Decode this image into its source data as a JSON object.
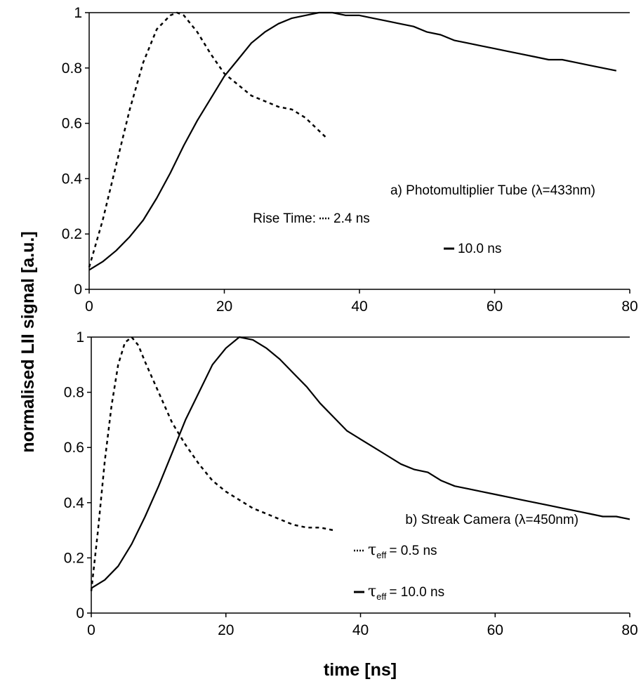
{
  "chart_data": [
    {
      "type": "line",
      "panel": "a",
      "xlim": [
        0,
        80
      ],
      "ylim": [
        0,
        1
      ],
      "x_ticks": [
        0,
        20,
        40,
        60,
        80
      ],
      "y_ticks": [
        0,
        0.2,
        0.4,
        0.6,
        0.8,
        1
      ],
      "x_tick_labels": [
        "0",
        "20",
        "40",
        "60",
        "80"
      ],
      "y_tick_labels": [
        "0",
        "0.2",
        "0.4",
        "0.6",
        "0.8",
        "1"
      ],
      "grid": false,
      "legend": {
        "position": "right",
        "title": "a) Photomultiplier Tube (λ=433nm)",
        "prefix": "Rise Time:",
        "entries": [
          {
            "label": "2.4 ns",
            "style": "dotted"
          },
          {
            "label": "10.0 ns",
            "style": "solid"
          }
        ]
      },
      "series": [
        {
          "name": "2.4 ns",
          "style": "dotted",
          "points": [
            [
              0,
              0.08
            ],
            [
              2,
              0.25
            ],
            [
              4,
              0.45
            ],
            [
              6,
              0.65
            ],
            [
              8,
              0.82
            ],
            [
              10,
              0.94
            ],
            [
              12,
              0.99
            ],
            [
              13,
              1.0
            ],
            [
              14,
              0.99
            ],
            [
              16,
              0.93
            ],
            [
              18,
              0.85
            ],
            [
              20,
              0.78
            ],
            [
              22,
              0.74
            ],
            [
              24,
              0.7
            ],
            [
              26,
              0.68
            ],
            [
              28,
              0.66
            ],
            [
              30,
              0.65
            ],
            [
              32,
              0.62
            ],
            [
              35,
              0.55
            ]
          ]
        },
        {
          "name": "10.0 ns",
          "style": "solid",
          "points": [
            [
              0,
              0.07
            ],
            [
              2,
              0.1
            ],
            [
              4,
              0.14
            ],
            [
              6,
              0.19
            ],
            [
              8,
              0.25
            ],
            [
              10,
              0.33
            ],
            [
              12,
              0.42
            ],
            [
              14,
              0.52
            ],
            [
              16,
              0.61
            ],
            [
              18,
              0.69
            ],
            [
              20,
              0.77
            ],
            [
              22,
              0.83
            ],
            [
              24,
              0.89
            ],
            [
              26,
              0.93
            ],
            [
              28,
              0.96
            ],
            [
              30,
              0.98
            ],
            [
              32,
              0.99
            ],
            [
              34,
              1.0
            ],
            [
              36,
              1.0
            ],
            [
              38,
              0.99
            ],
            [
              40,
              0.99
            ],
            [
              42,
              0.98
            ],
            [
              44,
              0.97
            ],
            [
              46,
              0.96
            ],
            [
              48,
              0.95
            ],
            [
              50,
              0.93
            ],
            [
              52,
              0.92
            ],
            [
              54,
              0.9
            ],
            [
              56,
              0.89
            ],
            [
              58,
              0.88
            ],
            [
              60,
              0.87
            ],
            [
              62,
              0.86
            ],
            [
              64,
              0.85
            ],
            [
              66,
              0.84
            ],
            [
              68,
              0.83
            ],
            [
              70,
              0.83
            ],
            [
              72,
              0.82
            ],
            [
              74,
              0.81
            ],
            [
              76,
              0.8
            ],
            [
              78,
              0.79
            ]
          ]
        }
      ]
    },
    {
      "type": "line",
      "panel": "b",
      "xlim": [
        0,
        80
      ],
      "ylim": [
        0,
        1
      ],
      "x_ticks": [
        0,
        20,
        40,
        60,
        80
      ],
      "y_ticks": [
        0,
        0.2,
        0.4,
        0.6,
        0.8,
        1
      ],
      "x_tick_labels": [
        "0",
        "20",
        "40",
        "60",
        "80"
      ],
      "y_tick_labels": [
        "0",
        "0.2",
        "0.4",
        "0.6",
        "0.8",
        "1"
      ],
      "grid": false,
      "legend": {
        "position": "right",
        "title": "b) Streak Camera (λ=450nm)",
        "entries": [
          {
            "symbol": "τ",
            "subscript": "eff",
            "label": "=   0.5 ns",
            "style": "dotted"
          },
          {
            "symbol": "τ",
            "subscript": "eff",
            "label": "= 10.0 ns",
            "style": "solid"
          }
        ]
      },
      "series": [
        {
          "name": "0.5 ns",
          "style": "dotted",
          "points": [
            [
              0,
              0.08
            ],
            [
              1,
              0.3
            ],
            [
              2,
              0.55
            ],
            [
              3,
              0.75
            ],
            [
              4,
              0.9
            ],
            [
              5,
              0.98
            ],
            [
              6,
              1.0
            ],
            [
              7,
              0.97
            ],
            [
              8,
              0.91
            ],
            [
              10,
              0.8
            ],
            [
              12,
              0.69
            ],
            [
              14,
              0.61
            ],
            [
              16,
              0.54
            ],
            [
              18,
              0.48
            ],
            [
              20,
              0.44
            ],
            [
              22,
              0.41
            ],
            [
              24,
              0.38
            ],
            [
              26,
              0.36
            ],
            [
              28,
              0.34
            ],
            [
              30,
              0.32
            ],
            [
              32,
              0.31
            ],
            [
              34,
              0.31
            ],
            [
              36,
              0.3
            ]
          ]
        },
        {
          "name": "10.0 ns",
          "style": "solid",
          "points": [
            [
              0,
              0.09
            ],
            [
              2,
              0.12
            ],
            [
              4,
              0.17
            ],
            [
              6,
              0.25
            ],
            [
              8,
              0.35
            ],
            [
              10,
              0.46
            ],
            [
              12,
              0.58
            ],
            [
              14,
              0.7
            ],
            [
              16,
              0.8
            ],
            [
              18,
              0.9
            ],
            [
              20,
              0.96
            ],
            [
              22,
              1.0
            ],
            [
              24,
              0.99
            ],
            [
              26,
              0.96
            ],
            [
              28,
              0.92
            ],
            [
              30,
              0.87
            ],
            [
              32,
              0.82
            ],
            [
              34,
              0.76
            ],
            [
              36,
              0.71
            ],
            [
              38,
              0.66
            ],
            [
              40,
              0.63
            ],
            [
              42,
              0.6
            ],
            [
              44,
              0.57
            ],
            [
              46,
              0.54
            ],
            [
              48,
              0.52
            ],
            [
              50,
              0.51
            ],
            [
              52,
              0.48
            ],
            [
              54,
              0.46
            ],
            [
              56,
              0.45
            ],
            [
              58,
              0.44
            ],
            [
              60,
              0.43
            ],
            [
              62,
              0.42
            ],
            [
              64,
              0.41
            ],
            [
              66,
              0.4
            ],
            [
              68,
              0.39
            ],
            [
              70,
              0.38
            ],
            [
              72,
              0.37
            ],
            [
              74,
              0.36
            ],
            [
              76,
              0.35
            ],
            [
              78,
              0.35
            ],
            [
              80,
              0.34
            ]
          ]
        }
      ]
    }
  ],
  "axes_labels": {
    "ylabel": "normalised LII signal [a.u.]",
    "xlabel": "time [ns]"
  }
}
